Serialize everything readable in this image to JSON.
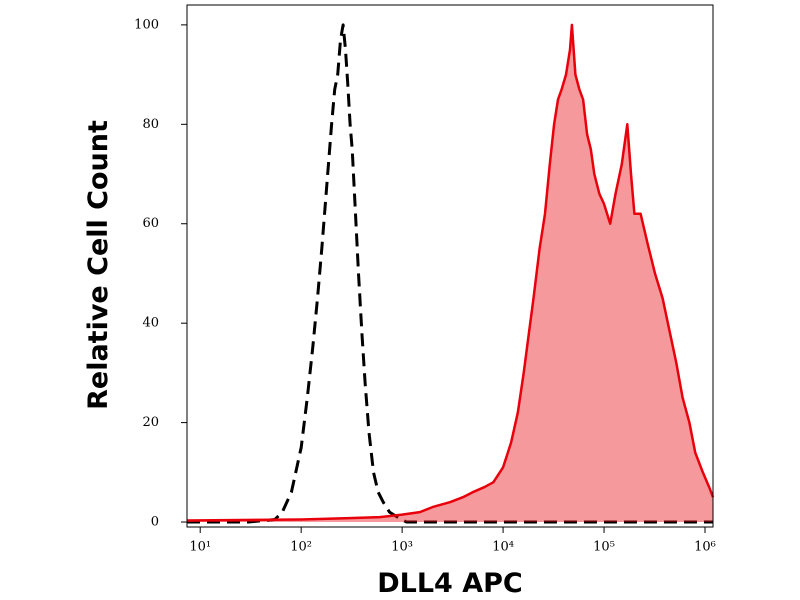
{
  "chart_data": {
    "type": "line",
    "xlabel": "DLL4 APC",
    "ylabel": "Relative Cell Count",
    "xscale": "log",
    "xlim": [
      7.4,
      1200000
    ],
    "ylim": [
      -1,
      104
    ],
    "xticks": [
      {
        "value": 10,
        "label": "10¹"
      },
      {
        "value": 100,
        "label": "10²"
      },
      {
        "value": 1000,
        "label": "10³"
      },
      {
        "value": 10000,
        "label": "10⁴"
      },
      {
        "value": 100000,
        "label": "10⁵"
      },
      {
        "value": 1000000,
        "label": "10⁶"
      }
    ],
    "yticks": [
      0,
      20,
      40,
      60,
      80,
      100
    ],
    "series": [
      {
        "color": "#000000",
        "dashed": true,
        "fill": false,
        "x": [
          7.4,
          30,
          55,
          65,
          80,
          100,
          115,
          130,
          145,
          160,
          180,
          200,
          215,
          230,
          245,
          260,
          275,
          290,
          305,
          320,
          345,
          370,
          400,
          430,
          470,
          520,
          580,
          650,
          750,
          900,
          1100,
          3000,
          10000,
          50000,
          200000,
          1200000
        ],
        "values": [
          0,
          0,
          0.5,
          2,
          6,
          15,
          25,
          35,
          45,
          55,
          68,
          80,
          87,
          90,
          97,
          100,
          95,
          88,
          80,
          75,
          62,
          50,
          38,
          28,
          18,
          10,
          6,
          4,
          2,
          1,
          0,
          0,
          0,
          0,
          0,
          0
        ]
      },
      {
        "color": "#e8000b",
        "dashed": false,
        "fill": true,
        "x": [
          7.4,
          100,
          300,
          600,
          1000,
          1500,
          2000,
          3000,
          4000,
          5000,
          6500,
          8000,
          10000,
          12000,
          14000,
          16000,
          18000,
          20000,
          23000,
          26000,
          29000,
          32000,
          35000,
          38000,
          42000,
          46000,
          48000,
          52000,
          57000,
          62000,
          68000,
          74000,
          80000,
          90000,
          100000,
          115000,
          130000,
          150000,
          170000,
          185000,
          200000,
          230000,
          270000,
          320000,
          380000,
          450000,
          520000,
          600000,
          700000,
          800000,
          950000,
          1100000,
          1200000
        ],
        "values": [
          0.3,
          0.5,
          0.8,
          1,
          1.5,
          2,
          3,
          4,
          5,
          6,
          7,
          8,
          11,
          16,
          22,
          30,
          38,
          45,
          55,
          62,
          72,
          80,
          85,
          87,
          90,
          95,
          100,
          90,
          87,
          85,
          78,
          75,
          70,
          66,
          64,
          60,
          66,
          72,
          80,
          70,
          62,
          62,
          56,
          50,
          45,
          38,
          32,
          25,
          20,
          14,
          10,
          7,
          5
        ]
      }
    ]
  }
}
